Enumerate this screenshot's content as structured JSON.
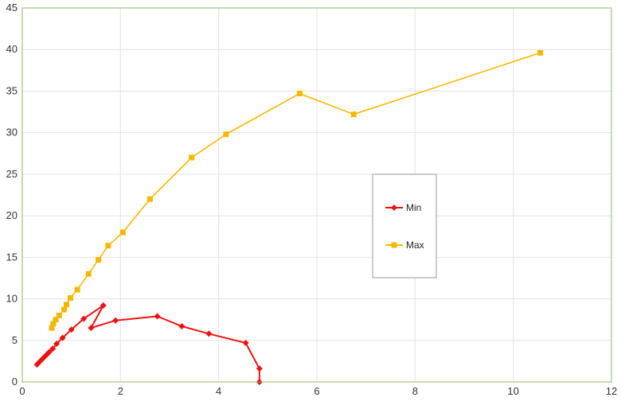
{
  "chart_data": {
    "type": "scatter",
    "title": "",
    "xlabel": "",
    "ylabel": "",
    "xlim": [
      0,
      12
    ],
    "ylim": [
      0,
      45
    ],
    "x_ticks": [
      "0",
      "2",
      "4",
      "6",
      "8",
      "10",
      "12"
    ],
    "y_ticks": [
      "0",
      "5",
      "10",
      "15",
      "20",
      "25",
      "30",
      "35",
      "40",
      "45"
    ],
    "grid": true,
    "legend_position": "right",
    "series": [
      {
        "name": "Min",
        "color": "#ee1111",
        "marker": "diamond",
        "points": [
          [
            0.3,
            2.1
          ],
          [
            0.35,
            2.4
          ],
          [
            0.4,
            2.7
          ],
          [
            0.45,
            3.0
          ],
          [
            0.5,
            3.3
          ],
          [
            0.55,
            3.6
          ],
          [
            0.62,
            4.0
          ],
          [
            0.7,
            4.6
          ],
          [
            0.82,
            5.3
          ],
          [
            1.0,
            6.3
          ],
          [
            1.25,
            7.6
          ],
          [
            1.65,
            9.2
          ],
          [
            1.4,
            6.5
          ],
          [
            1.9,
            7.4
          ],
          [
            2.75,
            7.9
          ],
          [
            3.25,
            6.7
          ],
          [
            3.8,
            5.8
          ],
          [
            4.55,
            4.7
          ],
          [
            4.83,
            1.6
          ],
          [
            4.83,
            0.0
          ]
        ]
      },
      {
        "name": "Max",
        "color": "#f5b800",
        "marker": "square",
        "points": [
          [
            0.6,
            6.5
          ],
          [
            0.63,
            7.0
          ],
          [
            0.68,
            7.5
          ],
          [
            0.75,
            8.0
          ],
          [
            0.85,
            8.7
          ],
          [
            0.9,
            9.3
          ],
          [
            0.98,
            10.1
          ],
          [
            1.12,
            11.1
          ],
          [
            1.35,
            13.0
          ],
          [
            1.55,
            14.7
          ],
          [
            1.75,
            16.4
          ],
          [
            2.05,
            18.0
          ],
          [
            2.6,
            22.0
          ],
          [
            3.45,
            27.0
          ],
          [
            4.15,
            29.8
          ],
          [
            5.65,
            34.7
          ],
          [
            6.75,
            32.2
          ],
          [
            10.55,
            39.6
          ]
        ]
      }
    ]
  },
  "style": {
    "frame_color": "#8fb56a",
    "grid_color": "#e4e4e4",
    "legend_border": "#9a9a9a"
  }
}
